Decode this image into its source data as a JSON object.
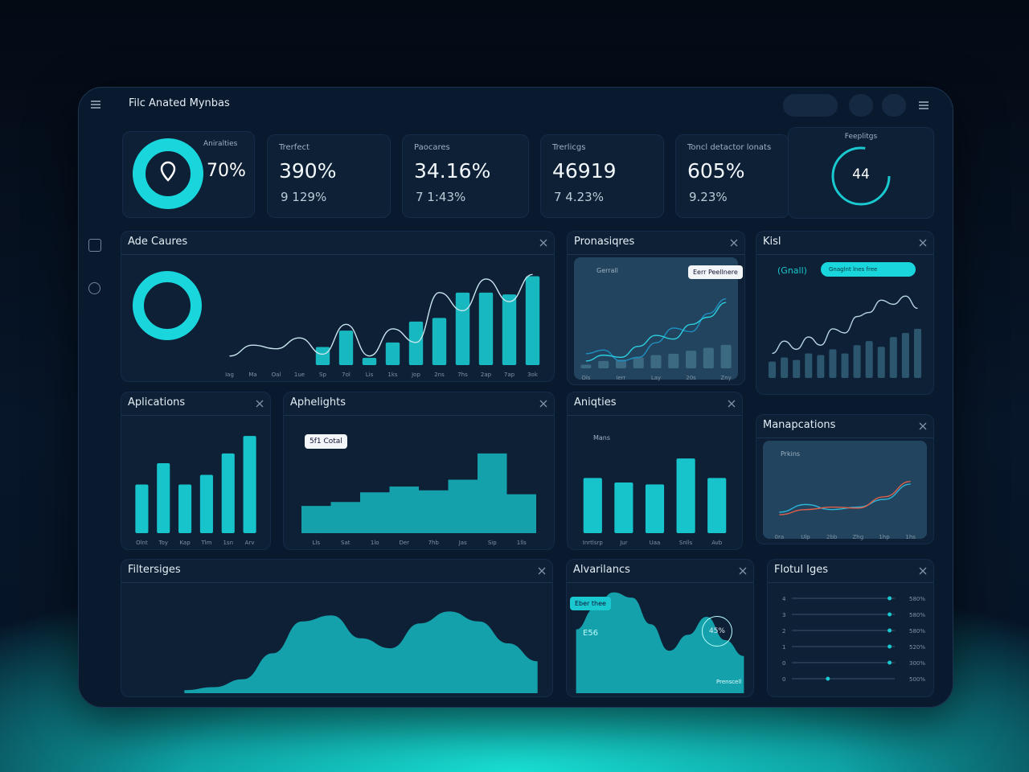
{
  "header": {
    "title": "Filc Anated Mynbas"
  },
  "kpis": [
    {
      "label": "Aniralties",
      "value": "70%"
    },
    {
      "label": "Trerfect",
      "value": "390%",
      "sub": "9 129%"
    },
    {
      "label": "Paocares",
      "value": "34.16%",
      "sub": "7 1:43%"
    },
    {
      "label": "Trerlicgs",
      "value": "46919",
      "sub": "7 4.23%"
    },
    {
      "label": "Toncl detactor lonats",
      "value": "605%",
      "sub": "9.23%"
    },
    {
      "label": "Feeplitgs",
      "value": "44"
    }
  ],
  "panels": [
    {
      "title": "Ade Caures",
      "chart": {
        "type": "bar",
        "ylim": [
          0,
          110
        ],
        "categories": [
          "Iag",
          "Ma",
          "Oal",
          "1ue",
          "Sp",
          "7ol",
          "Lis",
          "1ks",
          "Jop",
          "2ns",
          "7hs",
          "2ap",
          "7ap",
          "3ok"
        ],
        "series": [
          {
            "kind": "bar",
            "color": "#19c9cf",
            "values": [
              null,
              null,
              null,
              null,
              20,
              38,
              8,
              25,
              48,
              52,
              80,
              80,
              78,
              98
            ]
          },
          {
            "kind": "line",
            "color": "#c9e6ee",
            "values": [
              10,
              22,
              18,
              30,
              12,
              45,
              10,
              40,
              25,
              80,
              60,
              95,
              70,
              100
            ]
          }
        ]
      }
    },
    {
      "title": "Pronasiqres",
      "annotation": "Eerr Peellnere",
      "label": "Gerrall",
      "chart": {
        "type": "bar",
        "ylim": [
          0,
          110
        ],
        "categories": [
          "Ols",
          null,
          "Ierr",
          null,
          "Lay",
          null,
          "20s",
          null,
          "Zny"
        ],
        "series": [
          {
            "kind": "bar",
            "color": "#3f6f86",
            "values": [
              5,
              10,
              12,
              15,
              18,
              20,
              24,
              28,
              32
            ]
          },
          {
            "kind": "line",
            "color": "#1d8fc0",
            "values": [
              20,
              25,
              10,
              15,
              35,
              55,
              50,
              75,
              95
            ]
          },
          {
            "kind": "line",
            "color": "#2bd0e0",
            "values": [
              10,
              18,
              15,
              30,
              45,
              40,
              60,
              70,
              90
            ]
          }
        ]
      }
    },
    {
      "title": "Kisl",
      "label": "(Gnall)",
      "button": "Gnaglnt lnes free",
      "chart": {
        "type": "bar",
        "ylim": [
          0,
          110
        ],
        "series": [
          {
            "kind": "bar",
            "color": "#2f5c74",
            "values": [
              20,
              25,
              22,
              30,
              28,
              35,
              30,
              40,
              45,
              38,
              50,
              55,
              60
            ]
          },
          {
            "kind": "line",
            "color": "#b8d4e0",
            "values": [
              30,
              45,
              35,
              50,
              40,
              60,
              55,
              75,
              80,
              95,
              90,
              100,
              85
            ]
          }
        ]
      }
    },
    {
      "title": "Aplications",
      "chart": {
        "type": "bar",
        "ylim": [
          0,
          110
        ],
        "categories": [
          "Olnt",
          "Toy",
          "Kap",
          "Tlm",
          "1sn",
          "Arv"
        ],
        "series": [
          {
            "kind": "bar",
            "color": "#19d6dc",
            "values": [
              50,
              72,
              50,
              60,
              82,
              100
            ]
          }
        ]
      }
    },
    {
      "title": "Aphelights",
      "annotation": "5f1 Cotal",
      "chart": {
        "type": "area",
        "curve": "step",
        "ylim": [
          0,
          110
        ],
        "categories": [
          "Lls",
          "Sat",
          "1lo",
          "Der",
          "7hb",
          "Jas",
          "Sip",
          "1lls"
        ],
        "series": [
          {
            "kind": "area",
            "color": "#17b8c0",
            "values": [
              28,
              32,
              42,
              48,
              44,
              55,
              82,
              40
            ]
          }
        ]
      }
    },
    {
      "title": "Aniqties",
      "label": "Mans",
      "chart": {
        "type": "bar",
        "ylim": [
          0,
          130
        ],
        "categories": [
          "Inrtlsrp",
          "Jur",
          "Uaa",
          "Snlls",
          "Avb"
        ],
        "series": [
          {
            "kind": "bar",
            "color": "#19d6dc",
            "values": [
              85,
              78,
              75,
              115,
              85
            ]
          }
        ]
      }
    },
    {
      "title": "Manapcations",
      "label": "Prkins",
      "chart": {
        "type": "line",
        "ylim": [
          0,
          110
        ],
        "categories": [
          "0ra",
          "Ulp",
          "2bb",
          "Zhg",
          "1hp",
          "1hs"
        ],
        "series": [
          {
            "kind": "line",
            "color": "#2bb5d8",
            "values": [
              30,
              45,
              35,
              40,
              55,
              85
            ]
          },
          {
            "kind": "line",
            "color": "#e0604a",
            "values": [
              25,
              35,
              40,
              38,
              60,
              90
            ]
          }
        ]
      }
    },
    {
      "title": "Filtersiges",
      "chart": {
        "type": "area",
        "curve": "smooth",
        "ylim": [
          0,
          100
        ],
        "series": [
          {
            "kind": "area",
            "color": "#17b8c0",
            "values": [
              3,
              6,
              14,
              40,
              72,
              78,
              55,
              45,
              70,
              82,
              72,
              50,
              32
            ]
          }
        ]
      }
    },
    {
      "title": "Alvarilancs",
      "annotation": "Eber thee",
      "label": "E56",
      "badge": "45%",
      "note": "Prenscell",
      "chart": {
        "type": "area",
        "curve": "smooth",
        "ylim": [
          0,
          100
        ],
        "series": [
          {
            "kind": "area",
            "color": "#17b8c0",
            "values": [
              60,
              80,
              95,
              90,
              65,
              40,
              55,
              72,
              50,
              35
            ]
          }
        ]
      }
    },
    {
      "title": "Flotul Iges",
      "chart": {
        "type": "slider",
        "xlim": [
          0,
          100
        ],
        "rows": [
          {
            "tick": "4",
            "label": "580%",
            "value": 95
          },
          {
            "tick": "3",
            "label": "580%",
            "value": 95
          },
          {
            "tick": "2",
            "label": "580%",
            "value": 95
          },
          {
            "tick": "1",
            "label": "520%",
            "value": 95
          },
          {
            "tick": "0",
            "label": "300%",
            "value": 95
          },
          {
            "tick": "0",
            "label": "500%",
            "value": 35
          }
        ]
      }
    }
  ]
}
